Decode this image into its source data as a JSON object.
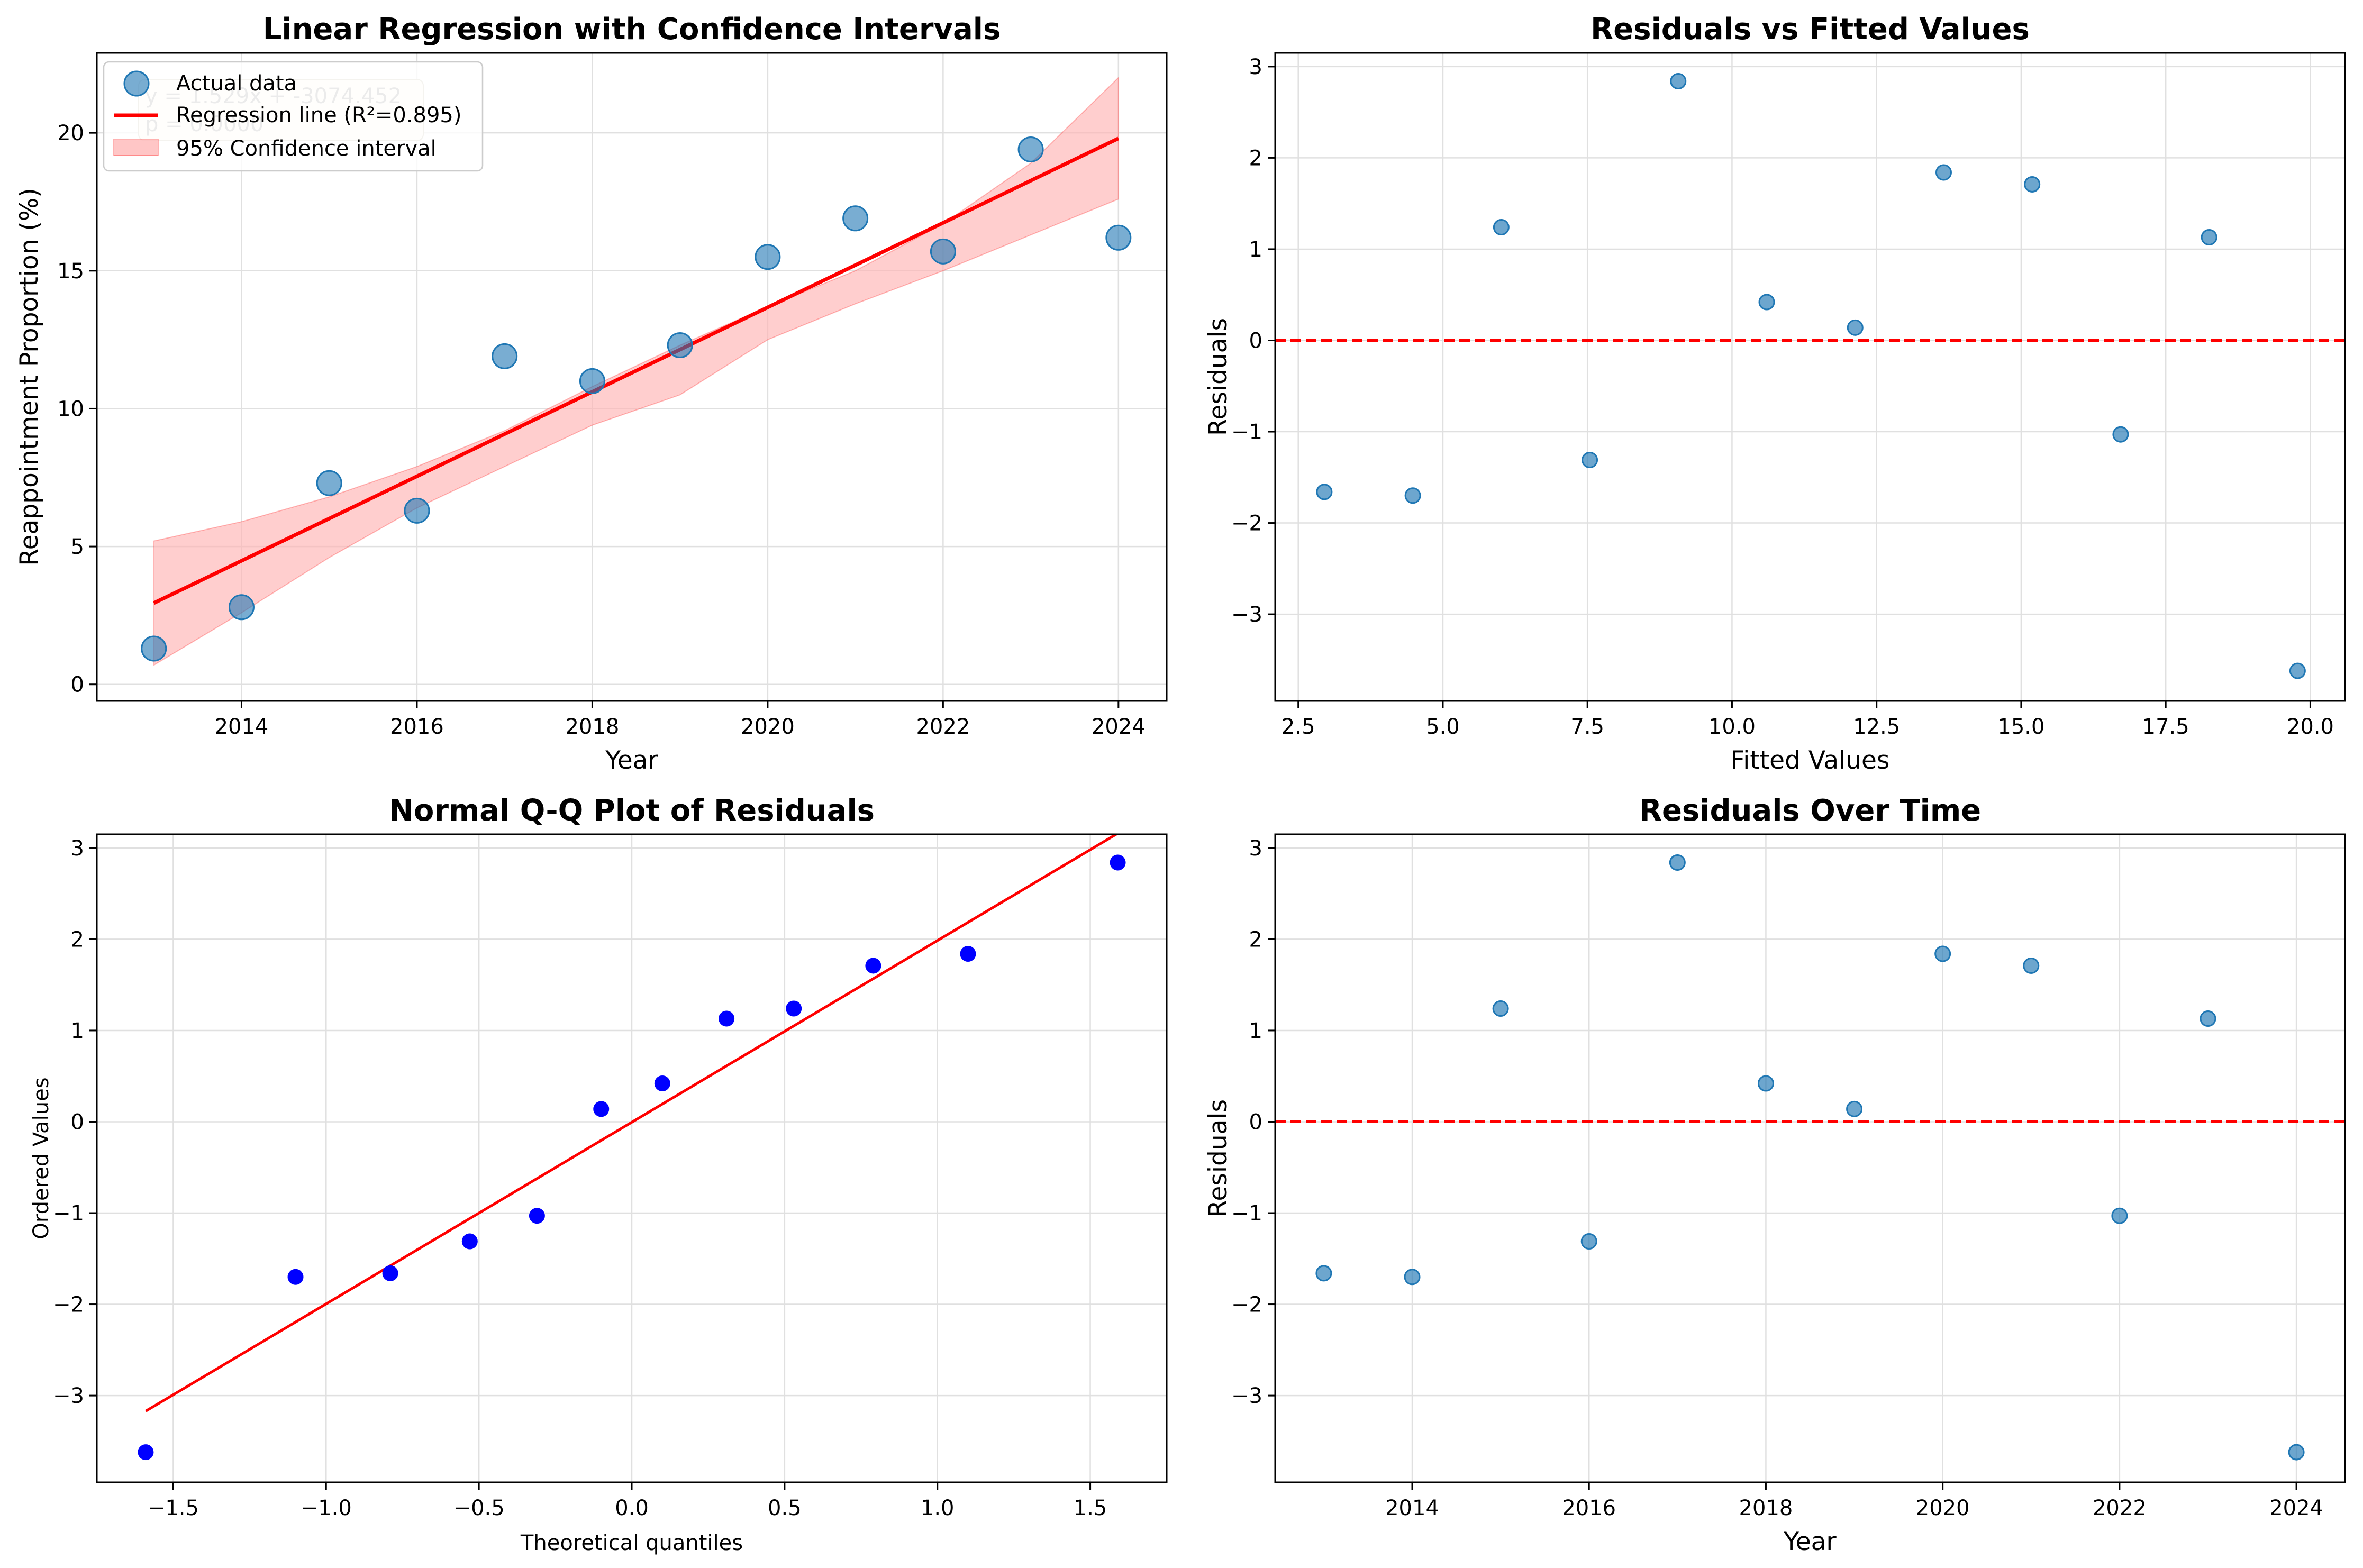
{
  "colors": {
    "data_point": "#1f77b4",
    "regression": "#ff0000",
    "confidence_fill": "#ffb3b3",
    "qq_point": "#0000ff",
    "grid": "#e0e0e0",
    "axis": "#000000"
  },
  "chart_data": [
    {
      "type": "scatter",
      "title": "Linear Regression with Confidence Intervals",
      "xlabel": "Year",
      "ylabel": "Reappointment Proportion (%)",
      "xlim": [
        2012.35,
        2024.55
      ],
      "ylim": [
        -0.6,
        22.9
      ],
      "xticks": [
        2014,
        2016,
        2018,
        2020,
        2022,
        2024
      ],
      "yticks": [
        0,
        5,
        10,
        15,
        20
      ],
      "grid": true,
      "legend_position": "upper-left",
      "series": [
        {
          "name": "Actual data",
          "kind": "scatter",
          "x": [
            2013,
            2014,
            2015,
            2016,
            2017,
            2018,
            2019,
            2020,
            2021,
            2022,
            2023,
            2024
          ],
          "y": [
            1.3,
            2.8,
            7.3,
            6.3,
            11.9,
            11.0,
            12.3,
            15.5,
            16.9,
            15.7,
            19.4,
            16.2
          ]
        },
        {
          "name": "Regression line (R²=0.895)",
          "kind": "line",
          "x": [
            2013,
            2024
          ],
          "y": [
            2.95,
            19.8
          ]
        },
        {
          "name": "95% Confidence interval",
          "kind": "band",
          "x": [
            2013,
            2014,
            2015,
            2016,
            2017,
            2018,
            2019,
            2020,
            2021,
            2022,
            2023,
            2024
          ],
          "upper": [
            5.2,
            5.9,
            6.8,
            7.9,
            9.2,
            10.8,
            12.3,
            13.7,
            15.0,
            16.7,
            18.9,
            22.0
          ],
          "lower": [
            0.7,
            2.6,
            4.6,
            6.4,
            7.9,
            9.4,
            10.5,
            12.5,
            13.8,
            15.0,
            16.3,
            17.6
          ]
        }
      ],
      "annotations": [
        "y = 1.529x + -3074.452",
        "p = 0.0000"
      ]
    },
    {
      "type": "scatter",
      "title": "Residuals vs Fitted Values",
      "xlabel": "Fitted Values",
      "ylabel": "Residuals",
      "xlim": [
        2.1,
        20.6
      ],
      "ylim": [
        -3.95,
        3.15
      ],
      "xticks": [
        2.5,
        5.0,
        7.5,
        10.0,
        12.5,
        15.0,
        17.5,
        20.0
      ],
      "xtick_labels": [
        "2.5",
        "5.0",
        "7.5",
        "10.0",
        "12.5",
        "15.0",
        "17.5",
        "20.0"
      ],
      "yticks": [
        -3,
        -2,
        -1,
        0,
        1,
        2,
        3
      ],
      "grid": true,
      "reference_line_y": 0,
      "series": [
        {
          "kind": "scatter",
          "x": [
            2.95,
            4.48,
            6.01,
            7.54,
            9.07,
            10.6,
            12.13,
            13.66,
            15.19,
            16.72,
            18.25,
            19.78
          ],
          "y": [
            -1.66,
            -1.7,
            1.24,
            -1.31,
            2.84,
            0.42,
            0.14,
            1.84,
            1.71,
            -1.03,
            1.13,
            -3.62
          ]
        }
      ]
    },
    {
      "type": "scatter",
      "title": "Normal Q-Q Plot of Residuals",
      "xlabel": "Theoretical quantiles",
      "ylabel": "Ordered Values",
      "xlim": [
        -1.75,
        1.75
      ],
      "ylim": [
        -3.95,
        3.15
      ],
      "xticks": [
        -1.5,
        -1.0,
        -0.5,
        0.0,
        0.5,
        1.0,
        1.5
      ],
      "xtick_labels": [
        "−1.5",
        "−1.0",
        "−0.5",
        "0.0",
        "0.5",
        "1.0",
        "1.5"
      ],
      "yticks": [
        -3,
        -2,
        -1,
        0,
        1,
        2,
        3
      ],
      "grid": true,
      "series": [
        {
          "kind": "scatter",
          "x": [
            -1.59,
            -1.1,
            -0.79,
            -0.53,
            -0.31,
            -0.1,
            0.1,
            0.31,
            0.53,
            0.79,
            1.1,
            1.59
          ],
          "y": [
            -3.62,
            -1.7,
            -1.66,
            -1.31,
            -1.03,
            0.14,
            0.42,
            1.13,
            1.24,
            1.71,
            1.84,
            2.84
          ]
        },
        {
          "kind": "line",
          "x": [
            -1.59,
            1.59
          ],
          "y": [
            -3.17,
            3.16
          ]
        }
      ]
    },
    {
      "type": "scatter",
      "title": "Residuals Over Time",
      "xlabel": "Year",
      "ylabel": "Residuals",
      "xlim": [
        2012.45,
        2024.55
      ],
      "ylim": [
        -3.95,
        3.15
      ],
      "xticks": [
        2014,
        2016,
        2018,
        2020,
        2022,
        2024
      ],
      "yticks": [
        -3,
        -2,
        -1,
        0,
        1,
        2,
        3
      ],
      "grid": true,
      "reference_line_y": 0,
      "series": [
        {
          "kind": "scatter",
          "x": [
            2013,
            2014,
            2015,
            2016,
            2017,
            2018,
            2019,
            2020,
            2021,
            2022,
            2023,
            2024
          ],
          "y": [
            -1.66,
            -1.7,
            1.24,
            -1.31,
            2.84,
            0.42,
            0.14,
            1.84,
            1.71,
            -1.03,
            1.13,
            -3.62
          ]
        }
      ]
    }
  ]
}
